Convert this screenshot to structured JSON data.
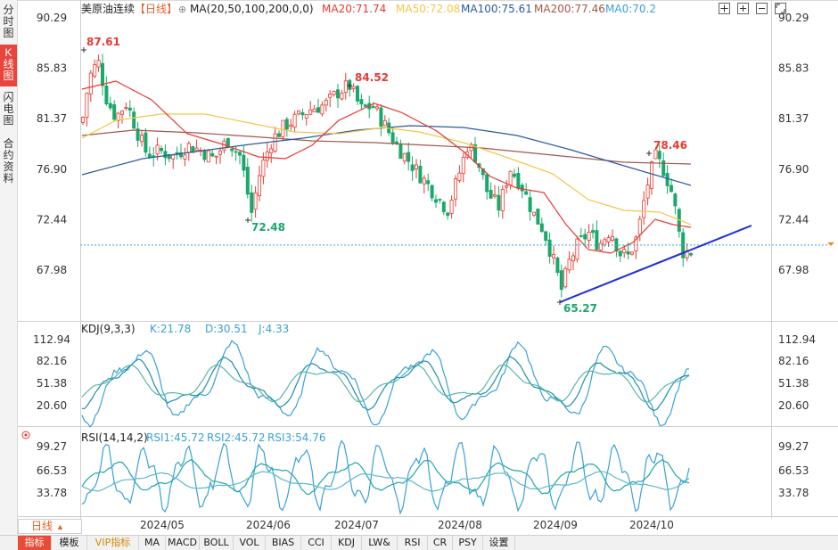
{
  "sidebar": {
    "tabs": [
      {
        "label": "分时图",
        "active": false
      },
      {
        "label": "K线图",
        "active": true
      },
      {
        "label": "闪电图",
        "active": false
      },
      {
        "label": "合约资料",
        "active": false
      }
    ]
  },
  "header": {
    "symbol": "美原油连续",
    "period_tag": "【日线】",
    "ma_params": "MA(20,50,100,200,0,0)",
    "ma20": "MA20:71.74",
    "ma50": "MA50:72.08",
    "ma100": "MA100:75.61",
    "ma200": "MA200:77.46",
    "ma0": "MA0:70.2",
    "colors": {
      "ma20": "#e8392f",
      "ma50": "#f2c64b",
      "ma100": "#2c5a9e",
      "ma200": "#a3564b",
      "ma0": "#3aa0d8"
    }
  },
  "toolbar_icons": [
    "move-icon",
    "zoom-in-icon",
    "zoom-out-icon",
    "fullscreen-icon"
  ],
  "price_axis": {
    "ticks": [
      "90.29",
      "85.83",
      "81.37",
      "76.90",
      "72.44",
      "67.98"
    ]
  },
  "price_annotations": {
    "high1": "87.61",
    "low1": "72.48",
    "high2": "84.52",
    "high3": "78.46",
    "low2": "65.27"
  },
  "kdj": {
    "title": "KDJ(9,3,3)",
    "k": "K:21.78",
    "d": "D:30.51",
    "j": "J:4.33",
    "ticks": [
      "112.94",
      "82.16",
      "51.38",
      "20.60"
    ]
  },
  "rsi": {
    "title": "RSI(14,14,2)",
    "rsi1": "RSI1:45.72",
    "rsi2": "RSI2:45.72",
    "rsi3": "RSI3:54.76",
    "ticks": [
      "99.27",
      "66.53",
      "33.78"
    ]
  },
  "time_axis": [
    "2024/05",
    "2024/06",
    "2024/07",
    "2024/08",
    "2024/09",
    "2024/10"
  ],
  "period_selector": {
    "label": "日线"
  },
  "bottom_tabs": [
    "指标",
    "模板",
    "VIP指标",
    "MA",
    "MACD",
    "BOLL",
    "VOL",
    "BIAS",
    "CCI",
    "KDJ",
    "LW&",
    "RSI",
    "CR",
    "PSY",
    "设置"
  ],
  "last_price_colors": {
    "up": "#e8392f",
    "down": "#1aa86b"
  }
}
